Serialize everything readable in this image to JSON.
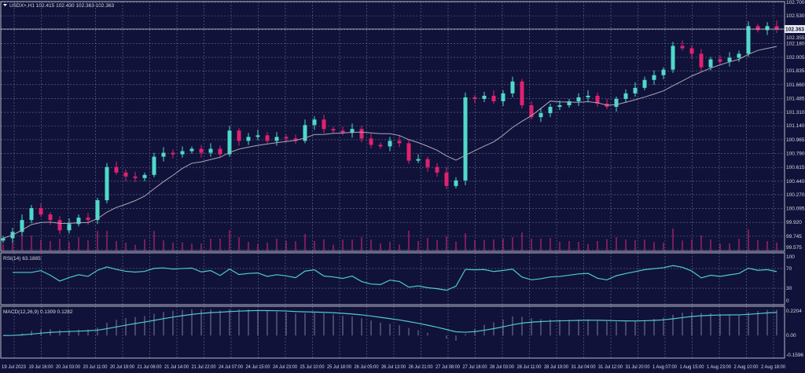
{
  "header": {
    "symbol_label": "USDX+,H1 102.415 102.430 102.363 102.363"
  },
  "colors": {
    "background": "#10123a",
    "bull": "#4fd9c9",
    "bear": "#e0226e",
    "ma": "#a9a9b4",
    "indicator": "#4fc9d0",
    "volume": "#c4246a"
  },
  "chart_data": [
    {
      "type": "candlestick",
      "title": "USDX+,H1",
      "current_price": "102.363",
      "ylim": [
        99.575,
        102.7
      ],
      "y_ticks": [
        "102.700",
        "102.530",
        "102.355",
        "102.180",
        "102.005",
        "101.835",
        "101.660",
        "101.485",
        "101.310",
        "101.140",
        "100.965",
        "100.790",
        "100.615",
        "100.440",
        "100.270",
        "100.095",
        "99.920",
        "99.745",
        "99.575"
      ],
      "x_ticks": [
        "19 Jul 2023",
        "19 Jul 16:00",
        "20 Jul 03:00",
        "20 Jul 11:00",
        "20 Jul 19:00",
        "21 Jul 06:00",
        "21 Jul 14:00",
        "21 Jul 22:00",
        "24 Jul 07:00",
        "24 Jul 15:00",
        "24 Jul 23:00",
        "25 Jul 10:00",
        "25 Jul 18:00",
        "26 Jul 05:00",
        "26 Jul 13:00",
        "26 Jul 21:00",
        "27 Jul 08:00",
        "27 Jul 16:00",
        "28 Jul 03:00",
        "28 Jul 11:00",
        "28 Jul 19:00",
        "31 Jul 04:00",
        "31 Jul 12:00",
        "31 Jul 20:00",
        "1 Aug 07:00",
        "1 Aug 15:00",
        "1 Aug 23:00",
        "2 Aug 10:00",
        "2 Aug 18:00"
      ],
      "closes": [
        99.72,
        99.8,
        99.95,
        100.1,
        100.02,
        99.95,
        99.82,
        99.9,
        99.98,
        99.95,
        100.2,
        100.62,
        100.55,
        100.5,
        100.48,
        100.52,
        100.75,
        100.8,
        100.78,
        100.82,
        100.85,
        100.8,
        100.85,
        100.78,
        101.08,
        100.95,
        101.0,
        101.02,
        100.95,
        101.0,
        100.98,
        100.95,
        101.15,
        101.22,
        101.1,
        101.08,
        101.05,
        101.1,
        100.98,
        100.9,
        100.88,
        100.95,
        100.92,
        100.7,
        100.72,
        100.62,
        100.55,
        100.38,
        100.45,
        101.5,
        101.48,
        101.52,
        101.45,
        101.55,
        101.7,
        101.4,
        101.25,
        101.3,
        101.38,
        101.4,
        101.45,
        101.5,
        101.52,
        101.42,
        101.38,
        101.48,
        101.55,
        101.62,
        101.72,
        101.78,
        101.85,
        102.15,
        102.12,
        102.05,
        101.88,
        101.98,
        101.95,
        102.0,
        102.05,
        102.4,
        102.35,
        102.4,
        102.363
      ],
      "moving_average": "gray line",
      "grid": true
    },
    {
      "type": "line",
      "title": "RSI(14) 63.1885",
      "ylim": [
        0,
        100
      ],
      "y_ticks": [
        "100",
        "70",
        "30",
        "0"
      ]
    },
    {
      "type": "line+histogram",
      "title": "MACD(12,26,9) 0.1309 0.1282",
      "ylim": [
        -0.1596,
        0.2204
      ],
      "y_ticks": [
        "0.2204",
        "0.00",
        "-0.1596"
      ]
    }
  ]
}
